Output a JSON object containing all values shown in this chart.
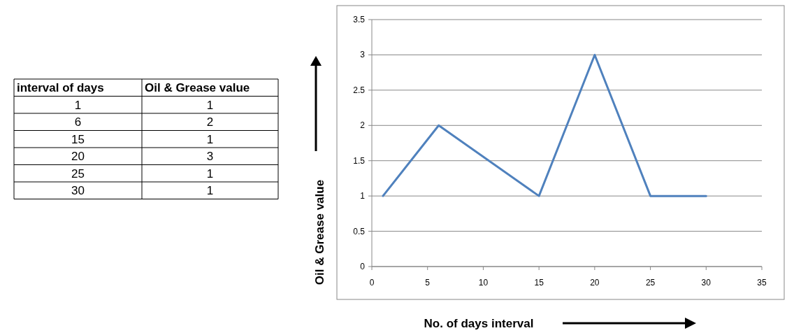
{
  "chart_data": [
    {
      "type": "other",
      "annotations": [
        "interval of days",
        "Oil & Grease value",
        "1",
        "1",
        "6",
        "2",
        "15",
        "1",
        "20",
        "3",
        "25",
        "1",
        "30",
        "1"
      ]
    },
    {
      "type": "line",
      "xlabel": "No. of days interval",
      "ylabel": "Oil & Grease value",
      "x": [
        1,
        6,
        15,
        20,
        25,
        30
      ],
      "series": [
        {
          "color": "#4f81bd",
          "values": [
            1,
            2,
            1,
            3,
            1,
            1
          ]
        }
      ],
      "xlim": [
        0,
        35
      ],
      "xticks": [
        0,
        5,
        10,
        15,
        20,
        25,
        30,
        35
      ],
      "ylim": [
        0,
        3.5
      ],
      "yticks": [
        0,
        0.5,
        1,
        1.5,
        2,
        2.5,
        3,
        3.5
      ],
      "grid": "y",
      "marker": "none",
      "line_style": "solid"
    }
  ]
}
